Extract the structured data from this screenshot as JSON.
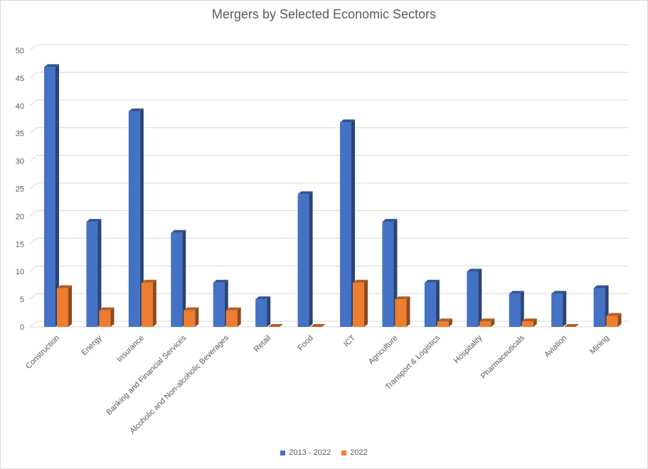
{
  "chart_data": {
    "type": "bar",
    "title": "Mergers by Selected Economic Sectors",
    "xlabel": "",
    "ylabel": "",
    "ylim": [
      0,
      50
    ],
    "yticks": [
      0,
      5,
      10,
      15,
      20,
      25,
      30,
      35,
      40,
      45,
      50
    ],
    "grid": true,
    "legend_position": "bottom",
    "categories": [
      "Construction",
      "Energy",
      "Insurance",
      "Banking and Financial Services",
      "Alcoholic and Non-alcoholic Beverages",
      "Retail",
      "Food",
      "ICT",
      "Agriculture",
      "Transport & Logistics",
      "Hospitality",
      "Pharmaceuticals",
      "Aviation",
      "Mining"
    ],
    "series": [
      {
        "name": "2013 - 2022",
        "color": "#4472C4",
        "values": [
          47,
          19,
          39,
          17,
          8,
          5,
          24,
          37,
          19,
          8,
          10,
          6,
          6,
          7
        ]
      },
      {
        "name": "2022",
        "color": "#ED7D31",
        "values": [
          7,
          3,
          8,
          3,
          3,
          0,
          0,
          8,
          5,
          1,
          1,
          1,
          0,
          2
        ]
      }
    ]
  }
}
